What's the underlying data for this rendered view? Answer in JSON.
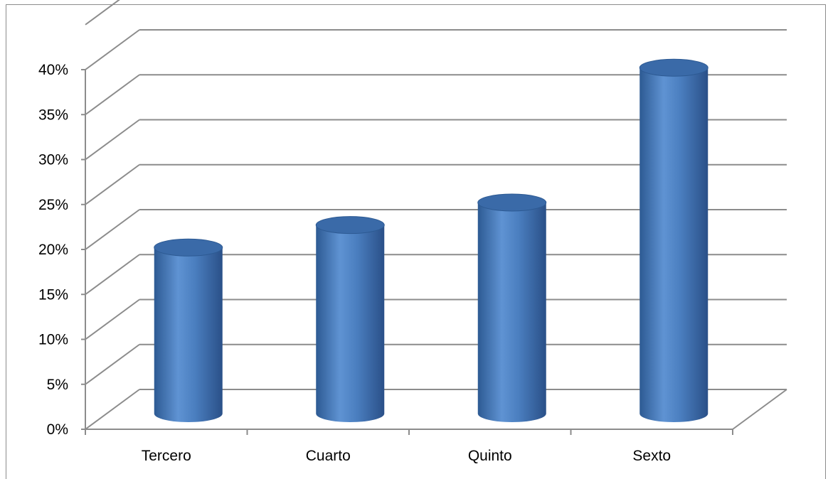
{
  "chart_data": {
    "type": "bar",
    "style": "3d-cylinder",
    "categories": [
      "Tercero",
      "Cuarto",
      "Quinto",
      "Sexto"
    ],
    "values": [
      18,
      20.5,
      23,
      38
    ],
    "y_unit": "percent",
    "y_ticks": [
      "0%",
      "5%",
      "10%",
      "15%",
      "20%",
      "25%",
      "30%",
      "35%",
      "40%"
    ],
    "ylim": [
      0,
      40
    ],
    "grid": true,
    "legend": "none",
    "title": "",
    "xlabel": "",
    "ylabel": ""
  },
  "colors": {
    "bar_light": "#5f93d3",
    "bar_mid": "#4a7ebf",
    "bar_dark": "#2d5a93",
    "bar_top": "#3a6aa8",
    "gridline": "#8c8c8c"
  }
}
